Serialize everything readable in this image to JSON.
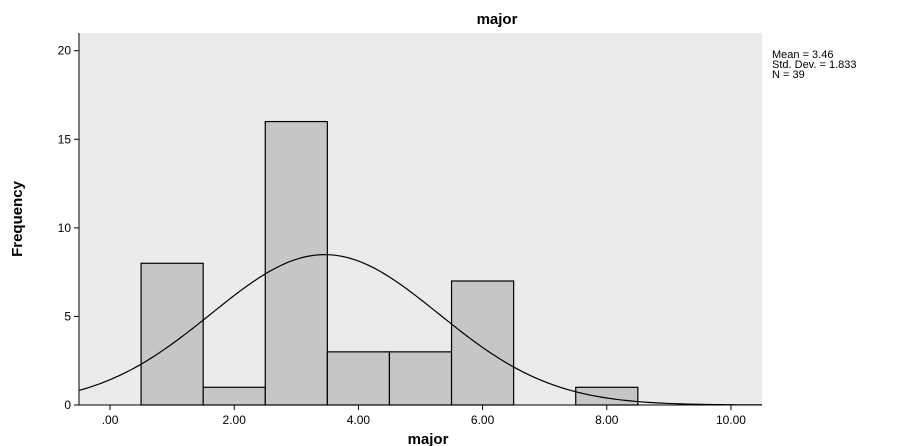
{
  "chart_data": {
    "type": "bar",
    "title": "major",
    "xlabel": "major",
    "ylabel": "Frequency",
    "xlim": [
      -0.5,
      10.5
    ],
    "ylim": [
      0,
      21
    ],
    "x_ticks": [
      {
        "value": 0,
        "label": ".00"
      },
      {
        "value": 2,
        "label": "2.00"
      },
      {
        "value": 4,
        "label": "4.00"
      },
      {
        "value": 6,
        "label": "6.00"
      },
      {
        "value": 8,
        "label": "8.00"
      },
      {
        "value": 10,
        "label": "10.00"
      }
    ],
    "y_ticks": [
      {
        "value": 0,
        "label": "0"
      },
      {
        "value": 5,
        "label": "5"
      },
      {
        "value": 10,
        "label": "10"
      },
      {
        "value": 15,
        "label": "15"
      },
      {
        "value": 20,
        "label": "20"
      }
    ],
    "bins": [
      {
        "x_start": 0.5,
        "x_end": 1.5,
        "count": 8
      },
      {
        "x_start": 1.5,
        "x_end": 2.5,
        "count": 1
      },
      {
        "x_start": 2.5,
        "x_end": 3.5,
        "count": 16
      },
      {
        "x_start": 3.5,
        "x_end": 4.5,
        "count": 3
      },
      {
        "x_start": 4.5,
        "x_end": 5.5,
        "count": 3
      },
      {
        "x_start": 5.5,
        "x_end": 6.5,
        "count": 7
      },
      {
        "x_start": 7.5,
        "x_end": 8.5,
        "count": 1
      }
    ],
    "normal_curve": {
      "mean": 3.46,
      "std_dev": 1.833,
      "n": 39,
      "bin_width": 1
    },
    "stats": [
      "Mean = 3.46",
      "Std. Dev. = 1.833",
      "N = 39"
    ],
    "grid": false,
    "legend": "none",
    "colors": {
      "plot_background": "#ebebeb",
      "bar_fill": "#c6c6c6",
      "bar_stroke": "#000000",
      "curve": "#000000"
    }
  }
}
